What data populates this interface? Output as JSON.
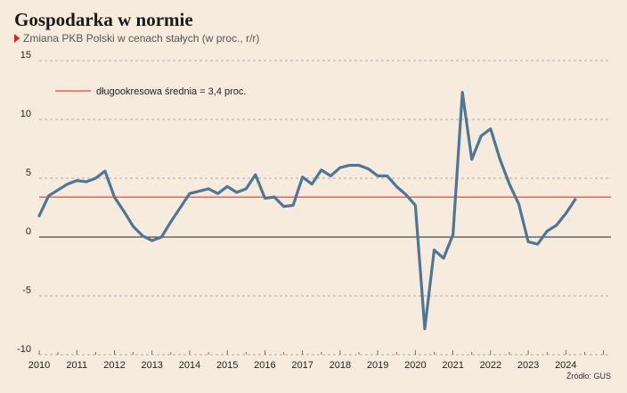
{
  "header": {
    "title": "Gospodarka w normie",
    "subtitle": "Zmiana PKB Polski w cenach stałych (w proc., r/r)"
  },
  "footer": {
    "source": "Źródło: GUS"
  },
  "colors": {
    "background": "#f7ebdd",
    "series": "#4e7797",
    "average_line": "#d9231d",
    "zero_line": "#222222",
    "grid": "#9a9a9a",
    "accent_triangle": "#d9231d"
  },
  "chart_data": {
    "type": "line",
    "title": "Gospodarka w normie",
    "subtitle": "Zmiana PKB Polski w cenach stałych (w proc., r/r)",
    "xlabel": "",
    "ylabel": "",
    "xlim": [
      2010,
      2025.2
    ],
    "ylim": [
      -10,
      15
    ],
    "yticks": [
      15,
      10,
      5,
      0,
      -5,
      -10
    ],
    "ytick_labels": [
      "15",
      "10",
      "5",
      "0",
      "-5",
      "-10"
    ],
    "xticks": [
      2010,
      2011,
      2012,
      2013,
      2014,
      2015,
      2016,
      2017,
      2018,
      2019,
      2020,
      2021,
      2022,
      2023,
      2024
    ],
    "xtick_labels": [
      "2010",
      "2011",
      "2012",
      "2013",
      "2014",
      "2015",
      "2016",
      "2017",
      "2018",
      "2019",
      "2020",
      "2021",
      "2022",
      "2023",
      "2024"
    ],
    "grid": "horizontal dashed",
    "legend": {
      "placement": "top-left",
      "entries": [
        {
          "label": "długookresowa średnia = 3,4 proc.",
          "color": "#d9231d"
        }
      ]
    },
    "reference_lines": [
      {
        "label": "długookresowa średnia = 3,4 proc.",
        "y": 3.4
      }
    ],
    "series": [
      {
        "x": [
          2010.0,
          2010.25,
          2010.5,
          2010.75,
          2011.0,
          2011.25,
          2011.5,
          2011.75,
          2012.0,
          2012.25,
          2012.5,
          2012.75,
          2013.0,
          2013.25,
          2013.5,
          2013.75,
          2014.0,
          2014.25,
          2014.5,
          2014.75,
          2015.0,
          2015.25,
          2015.5,
          2015.75,
          2016.0,
          2016.25,
          2016.5,
          2016.75,
          2017.0,
          2017.25,
          2017.5,
          2017.75,
          2018.0,
          2018.25,
          2018.5,
          2018.75,
          2019.0,
          2019.25,
          2019.5,
          2019.75,
          2020.0,
          2020.25,
          2020.5,
          2020.75,
          2021.0,
          2021.25,
          2021.5,
          2021.75,
          2022.0,
          2022.25,
          2022.5,
          2022.75,
          2023.0,
          2023.25,
          2023.5,
          2023.75,
          2024.0,
          2024.25
        ],
        "values": [
          1.8,
          3.5,
          4.0,
          4.5,
          4.8,
          4.7,
          5.0,
          5.6,
          3.4,
          2.2,
          0.9,
          0.1,
          -0.3,
          0.0,
          1.3,
          2.5,
          3.7,
          3.9,
          4.1,
          3.7,
          4.3,
          3.8,
          4.1,
          5.3,
          3.3,
          3.4,
          2.6,
          2.7,
          5.1,
          4.5,
          5.7,
          5.2,
          5.9,
          6.1,
          6.1,
          5.8,
          5.2,
          5.2,
          4.3,
          3.6,
          2.7,
          -7.8,
          -1.1,
          -1.8,
          0.2,
          12.3,
          6.6,
          8.6,
          9.2,
          6.6,
          4.5,
          2.8,
          -0.4,
          -0.6,
          0.5,
          1.0,
          2.0,
          3.2
        ]
      }
    ]
  }
}
